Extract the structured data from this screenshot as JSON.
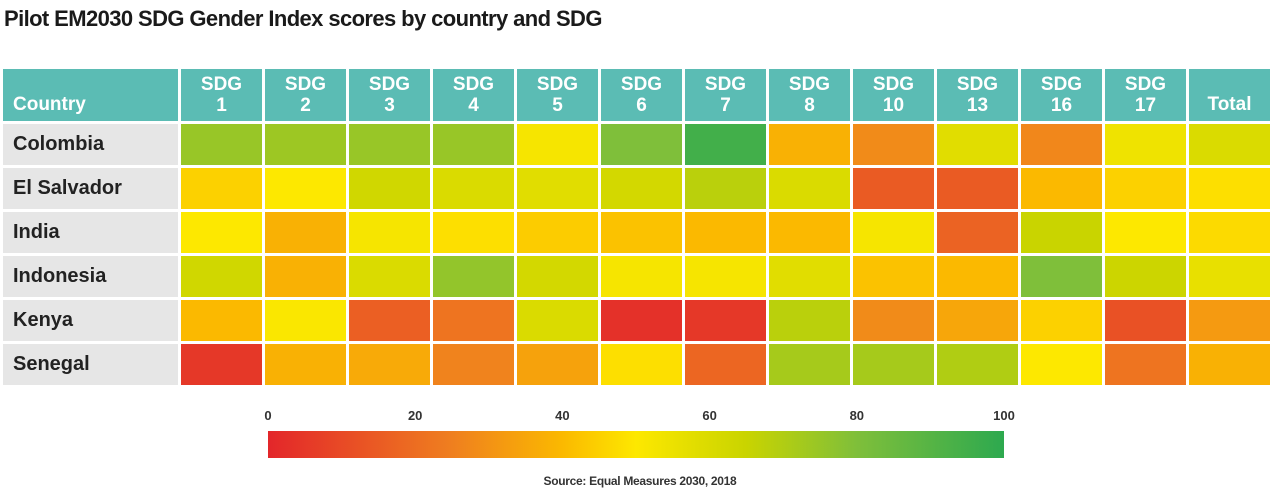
{
  "title": "Pilot EM2030 SDG Gender Index scores by country and SDG",
  "source": "Source: Equal Measures 2030, 2018",
  "chart_data": {
    "type": "heatmap",
    "title": "Pilot EM2030 SDG Gender Index scores by country and SDG",
    "row_header": "Country",
    "columns": [
      {
        "line1": "SDG",
        "line2": "1"
      },
      {
        "line1": "SDG",
        "line2": "2"
      },
      {
        "line1": "SDG",
        "line2": "3"
      },
      {
        "line1": "SDG",
        "line2": "4"
      },
      {
        "line1": "SDG",
        "line2": "5"
      },
      {
        "line1": "SDG",
        "line2": "6"
      },
      {
        "line1": "SDG",
        "line2": "7"
      },
      {
        "line1": "SDG",
        "line2": "8"
      },
      {
        "line1": "SDG",
        "line2": "10"
      },
      {
        "line1": "SDG",
        "line2": "13"
      },
      {
        "line1": "SDG",
        "line2": "16"
      },
      {
        "line1": "SDG",
        "line2": "17"
      },
      {
        "line1": "",
        "line2": "Total"
      }
    ],
    "rows": [
      {
        "country": "Colombia",
        "values": [
          75,
          74,
          75,
          75,
          52,
          80,
          95,
          38,
          28,
          58,
          27,
          54,
          60
        ]
      },
      {
        "country": "El Salvador",
        "values": [
          45,
          50,
          63,
          60,
          58,
          62,
          68,
          60,
          15,
          15,
          40,
          45,
          48
        ]
      },
      {
        "country": "India",
        "values": [
          50,
          38,
          52,
          48,
          44,
          42,
          40,
          40,
          52,
          17,
          65,
          50,
          47
        ]
      },
      {
        "country": "Indonesia",
        "values": [
          63,
          38,
          60,
          76,
          62,
          52,
          52,
          58,
          42,
          40,
          80,
          64,
          56
        ]
      },
      {
        "country": "Kenya",
        "values": [
          40,
          51,
          16,
          22,
          60,
          3,
          5,
          68,
          28,
          35,
          45,
          12,
          32
        ]
      },
      {
        "country": "Senegal",
        "values": [
          5,
          38,
          36,
          26,
          34,
          48,
          18,
          72,
          72,
          70,
          50,
          22,
          38
        ]
      }
    ],
    "scale": {
      "min": 0,
      "max": 100,
      "ticks": [
        0,
        20,
        40,
        60,
        80,
        100
      ],
      "stops": [
        {
          "value": 0,
          "color": "#e3262a"
        },
        {
          "value": 25,
          "color": "#ef7f1f"
        },
        {
          "value": 40,
          "color": "#fbb900"
        },
        {
          "value": 50,
          "color": "#fde800"
        },
        {
          "value": 65,
          "color": "#c9d400"
        },
        {
          "value": 80,
          "color": "#7fbf3a"
        },
        {
          "value": 100,
          "color": "#2da94f"
        }
      ]
    }
  }
}
